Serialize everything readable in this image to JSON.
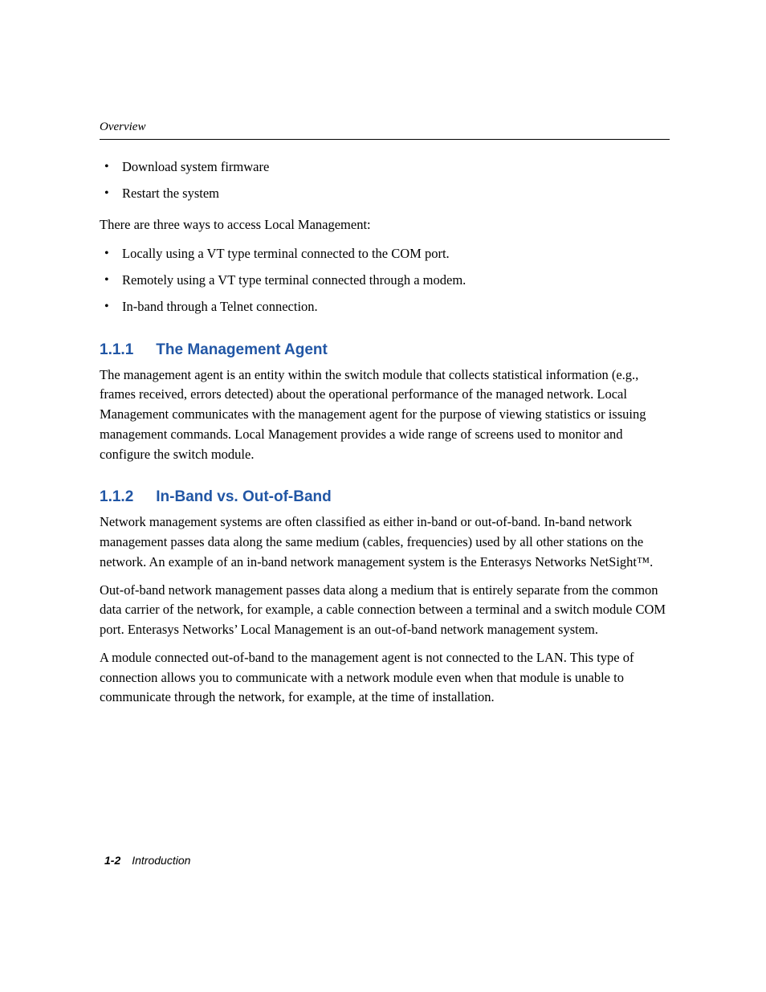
{
  "runningHead": "Overview",
  "topBullets": [
    "Download system firmware",
    "Restart the system"
  ],
  "introLine": "There are three ways to access Local Management:",
  "accessBullets": [
    "Locally using a VT type terminal connected to the COM port.",
    "Remotely using a VT type terminal connected through a modem.",
    "In-band through a Telnet connection."
  ],
  "sections": [
    {
      "number": "1.1.1",
      "title": "The Management Agent",
      "paragraphs": [
        "The management agent is an entity within the switch module that collects statistical information (e.g., frames received, errors detected) about the operational performance of the managed network. Local Management communicates with the management agent for the purpose of viewing statistics or issuing management commands. Local Management provides a wide range of screens used to monitor and configure the switch module."
      ]
    },
    {
      "number": "1.1.2",
      "title": "In-Band vs. Out-of-Band",
      "paragraphs": [
        "Network management systems are often classified as either in-band or out-of-band. In-band network management passes data along the same medium (cables, frequencies) used by all other stations on the network. An example of an in-band network management system is the Enterasys Networks NetSight™.",
        "Out-of-band network management passes data along a medium that is entirely separate from the common data carrier of the network, for example, a cable connection between a terminal and a switch module COM port. Enterasys Networks’ Local Management is an out-of-band network management system.",
        "A module connected out-of-band to the management agent is not connected to the LAN. This type of connection allows you to communicate with a network module even when that module is unable to communicate through the network, for example, at the time of installation."
      ]
    }
  ],
  "footer": {
    "pageNumber": "1-2",
    "chapter": "Introduction"
  },
  "colors": {
    "headingBlue": "#2156a5",
    "text": "#000000",
    "background": "#ffffff"
  },
  "typography": {
    "bodyFontFamily": "Times New Roman",
    "headingFontFamily": "Arial",
    "bodyFontSize": 16.5,
    "headingFontSize": 19,
    "runningHeadFontSize": 15,
    "footerFontSize": 14
  }
}
